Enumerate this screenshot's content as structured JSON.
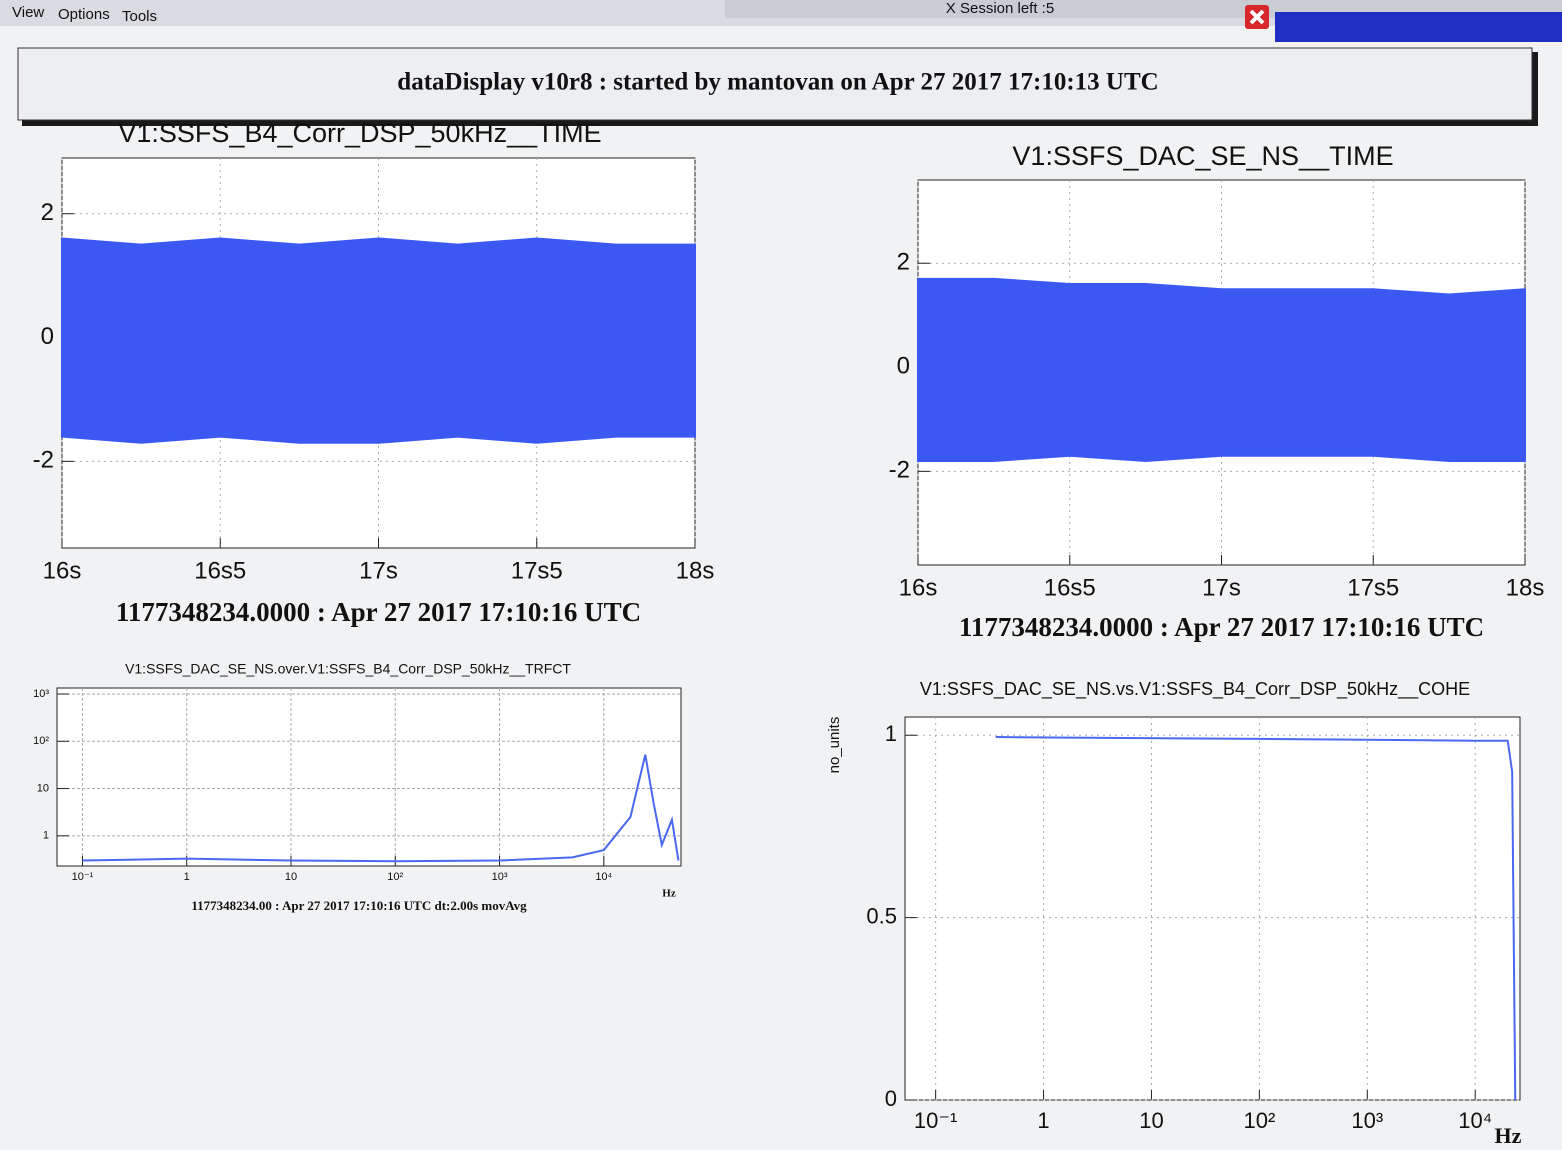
{
  "menu": [
    "View",
    "Options",
    "Tools"
  ],
  "session": "X Session left :5",
  "header": "dataDisplay v10r8 : started by mantovan on Apr 27 2017 17:10:13 UTC",
  "chart_data": [
    {
      "type": "band",
      "title": "V1:SSFS_B4_Corr_DSP_50kHz__TIME",
      "subtitle": "1177348234.0000 : Apr 27 2017 17:10:16 UTC",
      "x": [
        16,
        16.25,
        16.5,
        16.75,
        17,
        17.25,
        17.5,
        17.75,
        18
      ],
      "series": [
        {
          "color": "#3b58f2",
          "values": [
            1.6,
            1.5,
            1.6,
            1.5,
            1.6,
            1.5,
            1.6,
            1.5,
            1.5
          ]
        },
        {
          "color": "#3b58f2",
          "values": [
            -1.6,
            -1.7,
            -1.6,
            -1.7,
            -1.7,
            -1.6,
            -1.7,
            -1.6,
            -1.6
          ]
        }
      ],
      "xlim": [
        16,
        18
      ],
      "ylim": [
        -3.4,
        2.9
      ],
      "xticks": [
        {
          "value": 16,
          "label": "16s"
        },
        {
          "value": 16.5,
          "label": "16s5"
        },
        {
          "value": 17,
          "label": "17s"
        },
        {
          "value": 17.5,
          "label": "17s5"
        },
        {
          "value": 18,
          "label": "18s"
        }
      ],
      "yticks": [
        -2,
        0,
        2
      ],
      "grid": true
    },
    {
      "type": "band",
      "title": "V1:SSFS_DAC_SE_NS__TIME",
      "subtitle": "1177348234.0000 : Apr 27 2017 17:10:16 UTC",
      "x": [
        16,
        16.25,
        16.5,
        16.75,
        17,
        17.25,
        17.5,
        17.75,
        18
      ],
      "series": [
        {
          "color": "#3b58f2",
          "values": [
            1.7,
            1.7,
            1.6,
            1.6,
            1.5,
            1.5,
            1.5,
            1.4,
            1.5
          ]
        },
        {
          "color": "#3b58f2",
          "values": [
            -1.8,
            -1.8,
            -1.7,
            -1.8,
            -1.7,
            -1.7,
            -1.7,
            -1.8,
            -1.8
          ]
        }
      ],
      "xlim": [
        16,
        18
      ],
      "ylim": [
        -3.8,
        3.6
      ],
      "xticks": [
        {
          "value": 16,
          "label": "16s"
        },
        {
          "value": 16.5,
          "label": "16s5"
        },
        {
          "value": 17,
          "label": "17s"
        },
        {
          "value": 17.5,
          "label": "17s5"
        },
        {
          "value": 18,
          "label": "18s"
        }
      ],
      "yticks": [
        -2,
        0,
        2
      ],
      "grid": true
    },
    {
      "type": "line",
      "title": "V1:SSFS_DAC_SE_NS.over.V1:SSFS_B4_Corr_DSP_50kHz__TRFCT",
      "footer": "1177348234.00 : Apr 27 2017 17:10:16 UTC dt:2.00s movAvg",
      "xlabel": "Hz",
      "xlog": true,
      "ylog": true,
      "x": [
        0.1,
        1,
        10,
        100,
        1000,
        5000,
        10000,
        18000,
        25000,
        30000,
        36000,
        45000,
        52000
      ],
      "series": [
        {
          "color": "#4a68f0",
          "values": [
            0.3,
            0.33,
            0.3,
            0.29,
            0.3,
            0.35,
            0.5,
            2.5,
            52,
            5,
            0.64,
            2.2,
            0.3
          ]
        }
      ],
      "xlim": [
        0.057,
        55000
      ],
      "ylim": [
        0.23,
        1340
      ],
      "xticks": [
        {
          "value": 0.1,
          "label": "10⁻¹"
        },
        1,
        10,
        {
          "value": 100,
          "label": "10²"
        },
        {
          "value": 1000,
          "label": "10³"
        },
        {
          "value": 10000,
          "label": "10⁴"
        }
      ],
      "yticks": [
        1,
        10,
        {
          "value": 100,
          "label": "10²"
        },
        {
          "value": 1000,
          "label": "10³"
        }
      ],
      "grid": true
    },
    {
      "type": "line",
      "title": "V1:SSFS_DAC_SE_NS.vs.V1:SSFS_B4_Corr_DSP_50kHz__COHE",
      "xlabel": "Hz",
      "ylabel": "no_units",
      "xlog": true,
      "x": [
        0.36,
        100,
        10000,
        20000,
        22000,
        23500
      ],
      "series": [
        {
          "color": "#4a68f0",
          "values": [
            0.995,
            0.99,
            0.985,
            0.985,
            0.9,
            0
          ]
        }
      ],
      "xlim": [
        0.052,
        26000
      ],
      "ylim": [
        0,
        1.05
      ],
      "xticks": [
        {
          "value": 0.1,
          "label": "10⁻¹"
        },
        1,
        10,
        {
          "value": 100,
          "label": "10²"
        },
        {
          "value": 1000,
          "label": "10³"
        },
        {
          "value": 10000,
          "label": "10⁴"
        }
      ],
      "yticks": [
        0,
        0.5,
        1
      ],
      "grid": true
    }
  ]
}
